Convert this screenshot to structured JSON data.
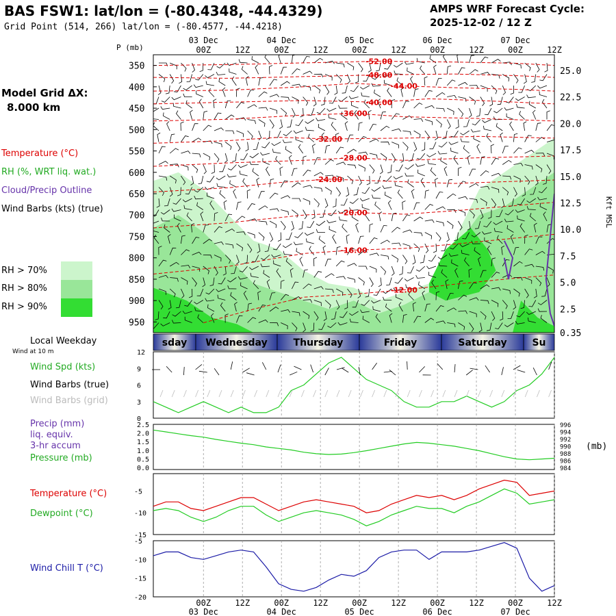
{
  "header": {
    "title": "BAS FSW1:  lat/lon = (-80.4348, -44.4329)",
    "subtitle": "Grid Point (514, 266) lat/lon = (-80.4577, -44.4218)",
    "cycle_label": "AMPS WRF Forecast Cycle:",
    "cycle_value": "2025-12-02 / 12  Z"
  },
  "model_grid": {
    "label": "Model Grid ΔX:",
    "value": "8.000 km"
  },
  "colors": {
    "temperature": "#dd0000",
    "dewpoint": "#22cc22",
    "cloud_outline": "#6633aa",
    "wind_chill": "#1a1aa6",
    "rh70": "#ccf5cc",
    "rh80": "#99e699",
    "rh90": "#33dd33"
  },
  "legend": {
    "temperature": "Temperature (°C)",
    "rh": "RH (%, WRT liq. wat.)",
    "cloud": "Cloud/Precip Outline",
    "wind_barbs": "Wind Barbs (kts) (true)",
    "rh70": "RH > 70%",
    "rh80": "RH > 80%",
    "rh90": "RH > 90%",
    "local_weekday": "Local Weekday",
    "wind_at_10m": "Wind at 10 m",
    "wind_spd": "Wind Spd (kts)",
    "wind_barbs_true": "Wind Barbs (true)",
    "wind_barbs_grid": "Wind Barbs (grid)",
    "precip": "Precip (mm)",
    "liq": "liq. equiv.",
    "accum": "3-hr accum",
    "pressure": "Pressure (mb)",
    "temp2": "Temperature (°C)",
    "dewpoint": "Dewpoint (°C)",
    "windchill": "Wind Chill T (°C)"
  },
  "chart_data": [
    {
      "type": "heatmap",
      "panel": "cross-section",
      "ylabel_left": "P (mb)",
      "ylabel_right": "Kft MSL",
      "y_ticks_left": [
        "350",
        "400",
        "450",
        "500",
        "550",
        "600",
        "650",
        "700",
        "750",
        "800",
        "850",
        "900",
        "950"
      ],
      "y_ticks_right": [
        "25.0",
        "22.5",
        "20.0",
        "17.5",
        "15.0",
        "12.5",
        "10.0",
        "7.5",
        "5.0",
        "2.5",
        "0.35"
      ],
      "x_ticks_top": [
        "00Z",
        "12Z",
        "00Z",
        "12Z",
        "00Z",
        "12Z",
        "00Z",
        "12Z",
        "00Z",
        "12Z"
      ],
      "x_dates_top": [
        "03 Dec",
        "04 Dec",
        "05 Dec",
        "06 Dec",
        "07 Dec"
      ],
      "temperature_contours": [
        {
          "value": -52,
          "label": "-52.00",
          "points": [
            [
              0,
              350
            ],
            [
              18,
              348
            ],
            [
              36,
              344
            ],
            [
              54,
              340
            ],
            [
              72,
              342
            ],
            [
              87,
              345
            ],
            [
              96,
              350
            ]
          ]
        },
        {
          "value": -48,
          "label": "-48.00",
          "points": [
            [
              0,
              378
            ],
            [
              18,
              380
            ],
            [
              36,
              376
            ],
            [
              54,
              372
            ],
            [
              72,
              370
            ],
            [
              87,
              374
            ],
            [
              96,
              378
            ]
          ]
        },
        {
          "value": -44,
          "label": "-44.00",
          "points": [
            [
              0,
              410
            ],
            [
              18,
              408
            ],
            [
              36,
              400
            ],
            [
              48,
              392
            ],
            [
              60,
              398
            ],
            [
              72,
              402
            ],
            [
              87,
              406
            ],
            [
              96,
              410
            ]
          ]
        },
        {
          "value": -40,
          "label": "-40.00",
          "points": [
            [
              0,
              440
            ],
            [
              18,
              436
            ],
            [
              36,
              432
            ],
            [
              54,
              436
            ],
            [
              66,
              428
            ],
            [
              78,
              432
            ],
            [
              96,
              440
            ]
          ]
        },
        {
          "value": -36,
          "label": "-36.00",
          "points": [
            [
              0,
              480
            ],
            [
              18,
              476
            ],
            [
              36,
              466
            ],
            [
              48,
              462
            ],
            [
              60,
              470
            ],
            [
              78,
              474
            ],
            [
              96,
              480
            ]
          ]
        },
        {
          "value": -32,
          "label": "-32.00",
          "points": [
            [
              0,
              532
            ],
            [
              18,
              526
            ],
            [
              30,
              518
            ],
            [
              42,
              522
            ],
            [
              60,
              520
            ],
            [
              78,
              516
            ],
            [
              96,
              520
            ]
          ]
        },
        {
          "value": -28,
          "label": "-28.00",
          "points": [
            [
              0,
              586
            ],
            [
              18,
              578
            ],
            [
              36,
              572
            ],
            [
              48,
              566
            ],
            [
              60,
              572
            ],
            [
              78,
              566
            ],
            [
              96,
              562
            ]
          ]
        },
        {
          "value": -24,
          "label": "-24.00",
          "points": [
            [
              0,
              646
            ],
            [
              18,
              636
            ],
            [
              30,
              624
            ],
            [
              42,
              616
            ],
            [
              54,
              620
            ],
            [
              72,
              626
            ],
            [
              96,
              618
            ]
          ]
        },
        {
          "value": -20,
          "label": "-20.00",
          "points": [
            [
              0,
              730
            ],
            [
              18,
              718
            ],
            [
              36,
              700
            ],
            [
              48,
              694
            ],
            [
              60,
              698
            ],
            [
              72,
              690
            ],
            [
              96,
              670
            ]
          ]
        },
        {
          "value": -16,
          "label": "-16.00",
          "points": [
            [
              0,
              838
            ],
            [
              18,
              820
            ],
            [
              36,
              790
            ],
            [
              48,
              782
            ],
            [
              60,
              778
            ],
            [
              72,
              768
            ],
            [
              96,
              745
            ]
          ]
        },
        {
          "value": -12,
          "label": "-12.00",
          "points": [
            [
              12,
              952
            ],
            [
              24,
              920
            ],
            [
              36,
              892
            ],
            [
              48,
              885
            ],
            [
              60,
              875
            ],
            [
              72,
              862
            ],
            [
              84,
              850
            ],
            [
              96,
              840
            ]
          ]
        }
      ],
      "rh_regions": [
        {
          "level": 70,
          "points": [
            [
              0,
              620
            ],
            [
              6,
              600
            ],
            [
              12,
              640
            ],
            [
              18,
              700
            ],
            [
              24,
              760
            ],
            [
              30,
              780
            ],
            [
              36,
              830
            ],
            [
              42,
              860
            ],
            [
              48,
              870
            ],
            [
              54,
              900
            ],
            [
              60,
              880
            ],
            [
              66,
              860
            ],
            [
              72,
              760
            ],
            [
              78,
              640
            ],
            [
              84,
              600
            ],
            [
              90,
              560
            ],
            [
              96,
              520
            ],
            [
              96,
              975
            ],
            [
              0,
              975
            ]
          ]
        },
        {
          "level": 80,
          "points": [
            [
              0,
              730
            ],
            [
              6,
              700
            ],
            [
              12,
              740
            ],
            [
              18,
              800
            ],
            [
              24,
              860
            ],
            [
              30,
              880
            ],
            [
              36,
              900
            ],
            [
              42,
              920
            ],
            [
              48,
              900
            ],
            [
              54,
              930
            ],
            [
              60,
              910
            ],
            [
              66,
              880
            ],
            [
              72,
              780
            ],
            [
              78,
              700
            ],
            [
              84,
              680
            ],
            [
              90,
              640
            ],
            [
              96,
              600
            ],
            [
              96,
              975
            ],
            [
              0,
              975
            ]
          ]
        },
        {
          "level": 90,
          "points": [
            [
              0,
              870
            ],
            [
              8,
              900
            ],
            [
              14,
              940
            ],
            [
              20,
              955
            ],
            [
              24,
              975
            ],
            [
              0,
              975
            ]
          ]
        },
        {
          "level": 90,
          "points": [
            [
              66,
              860
            ],
            [
              70,
              780
            ],
            [
              76,
              730
            ],
            [
              80,
              780
            ],
            [
              82,
              830
            ],
            [
              78,
              880
            ],
            [
              70,
              900
            ],
            [
              66,
              880
            ]
          ]
        },
        {
          "level": 90,
          "points": [
            [
              88,
              900
            ],
            [
              92,
              940
            ],
            [
              96,
              960
            ],
            [
              96,
              975
            ],
            [
              86,
              975
            ]
          ]
        }
      ],
      "cloud_outlines": [
        {
          "points": [
            [
              84,
              760
            ],
            [
              86,
              800
            ],
            [
              85,
              850
            ],
            [
              84,
              800
            ]
          ]
        },
        {
          "points": [
            [
              96,
              650
            ],
            [
              95,
              750
            ],
            [
              94,
              850
            ],
            [
              95,
              930
            ],
            [
              96,
              960
            ]
          ]
        }
      ]
    },
    {
      "type": "table",
      "panel": "local-weekday",
      "days": [
        "sday",
        "Wednesday",
        "Thursday",
        "Friday",
        "Saturday",
        "Su"
      ]
    },
    {
      "type": "line",
      "panel": "wind-speed",
      "ylabel": "Wind Spd (kts)",
      "ylim": [
        0,
        12
      ],
      "y_ticks": [
        "12",
        "9",
        "6",
        "3",
        "0"
      ],
      "x": [
        0,
        3,
        6,
        9,
        12,
        15,
        18,
        21,
        24,
        27,
        30,
        33,
        36,
        39,
        42,
        45,
        48,
        51,
        54,
        57,
        60,
        63,
        66,
        69,
        72,
        75,
        78,
        81,
        84,
        87,
        90,
        93,
        96
      ],
      "series": [
        {
          "values": [
            3,
            2,
            1,
            2,
            3,
            2,
            1,
            2,
            1,
            1,
            2,
            5,
            6,
            8,
            10,
            11,
            9,
            7,
            6,
            5,
            3,
            2,
            2,
            3,
            3,
            4,
            3,
            2,
            3,
            5,
            6,
            8,
            11
          ]
        }
      ]
    },
    {
      "type": "line",
      "panel": "pressure",
      "ylabel_left": "Precip (mm)",
      "ylabel_right": "(mb)",
      "y_ticks_left": [
        "2.5",
        "2.0",
        "1.5",
        "1.0",
        "0.5",
        "0.0"
      ],
      "y_ticks_right": [
        "996",
        "994",
        "992",
        "990",
        "988",
        "986",
        "984"
      ],
      "ylim": [
        984,
        996
      ],
      "x": [
        0,
        3,
        6,
        9,
        12,
        15,
        18,
        21,
        24,
        27,
        30,
        33,
        36,
        39,
        42,
        45,
        48,
        51,
        54,
        57,
        60,
        63,
        66,
        69,
        72,
        75,
        78,
        81,
        84,
        87,
        90,
        93,
        96
      ],
      "series": [
        {
          "name": "Pressure (mb)",
          "values": [
            994.5,
            994.0,
            993.5,
            993.0,
            992.6,
            992.0,
            991.5,
            991.0,
            990.6,
            990.0,
            989.6,
            989.2,
            988.6,
            988.2,
            988.0,
            988.1,
            988.5,
            989.0,
            989.6,
            990.2,
            990.8,
            991.2,
            991.0,
            990.6,
            990.2,
            989.6,
            989.0,
            988.2,
            987.4,
            986.8,
            986.6,
            986.8,
            987.0
          ]
        }
      ]
    },
    {
      "type": "line",
      "panel": "temperature-dewpoint",
      "ylim": [
        -15,
        0
      ],
      "y_ticks": [
        "-5",
        "-10",
        "-15"
      ],
      "x": [
        0,
        3,
        6,
        9,
        12,
        15,
        18,
        21,
        24,
        27,
        30,
        33,
        36,
        39,
        42,
        45,
        48,
        51,
        54,
        57,
        60,
        63,
        66,
        69,
        72,
        75,
        78,
        81,
        84,
        87,
        90,
        93,
        96
      ],
      "series": [
        {
          "name": "Temperature (°C)",
          "values": [
            -8.5,
            -7.5,
            -7.5,
            -9.0,
            -9.5,
            -8.5,
            -7.5,
            -6.5,
            -6.5,
            -8.0,
            -9.5,
            -8.5,
            -7.5,
            -7.0,
            -7.5,
            -8.0,
            -8.5,
            -10.0,
            -9.5,
            -8.0,
            -7.0,
            -6.0,
            -6.5,
            -6.0,
            -7.0,
            -6.0,
            -4.5,
            -3.5,
            -2.5,
            -3.0,
            -6.0,
            -5.5,
            -5.0
          ]
        },
        {
          "name": "Dewpoint (°C)",
          "values": [
            -9.5,
            -9.0,
            -9.5,
            -11.0,
            -12.0,
            -11.0,
            -9.5,
            -8.5,
            -8.5,
            -10.5,
            -12.0,
            -11.0,
            -10.0,
            -9.5,
            -10.0,
            -10.5,
            -11.5,
            -13.0,
            -12.0,
            -10.5,
            -9.5,
            -8.5,
            -9.0,
            -9.0,
            -10.0,
            -8.5,
            -7.5,
            -6.0,
            -4.5,
            -5.5,
            -8.0,
            -7.5,
            -7.0
          ]
        }
      ]
    },
    {
      "type": "line",
      "panel": "wind-chill",
      "ylim": [
        -20,
        -5
      ],
      "y_ticks": [
        "-5",
        "-10",
        "-15",
        "-20"
      ],
      "x_ticks_bottom": [
        "00Z",
        "12Z",
        "00Z",
        "12Z",
        "00Z",
        "12Z",
        "00Z",
        "12Z",
        "00Z",
        "12Z"
      ],
      "x_dates_bottom": [
        "03 Dec",
        "04 Dec",
        "05 Dec",
        "06 Dec",
        "07 Dec"
      ],
      "x": [
        0,
        3,
        6,
        9,
        12,
        15,
        18,
        21,
        24,
        27,
        30,
        33,
        36,
        39,
        42,
        45,
        48,
        51,
        54,
        57,
        60,
        63,
        66,
        69,
        72,
        75,
        78,
        81,
        84,
        87,
        90,
        93,
        96
      ],
      "series": [
        {
          "name": "Wind Chill T (°C)",
          "values": [
            -9.0,
            -8.0,
            -8.0,
            -9.5,
            -10.0,
            -9.0,
            -8.0,
            -7.5,
            -8.0,
            -12.0,
            -16.5,
            -18.0,
            -18.5,
            -17.5,
            -15.5,
            -14.0,
            -14.5,
            -13.0,
            -9.5,
            -8.0,
            -7.5,
            -7.5,
            -10.0,
            -8.0,
            -8.0,
            -8.0,
            -7.5,
            -6.5,
            -5.5,
            -7.0,
            -15.0,
            -18.5,
            -17.0
          ]
        }
      ]
    }
  ]
}
